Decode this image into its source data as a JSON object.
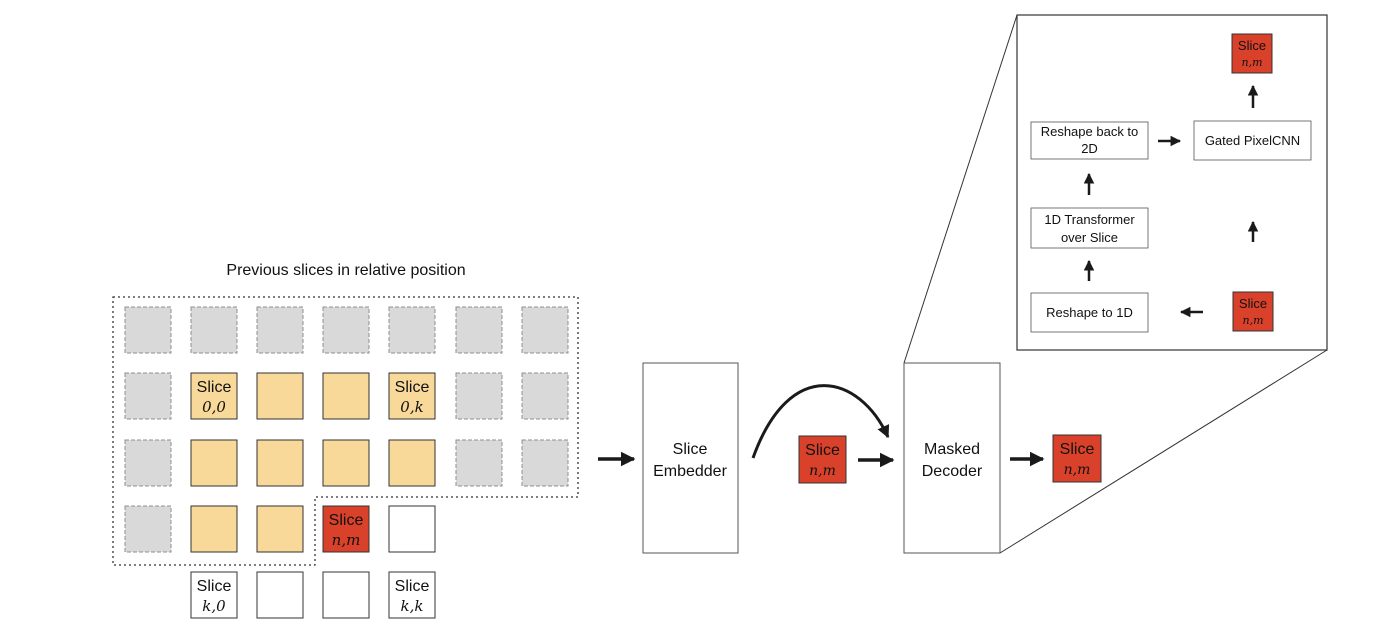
{
  "header": {
    "title": "Previous slices in relative position"
  },
  "colors": {
    "context": "#f8d99a",
    "unseen": "#d9d9d9",
    "current": "#d9412b",
    "empty": "#ffffff",
    "stroke": "#333333",
    "arrow": "#1a1a1a"
  },
  "grid": {
    "rows": [
      [
        "gray",
        "gray",
        "gray",
        "gray",
        "gray",
        "gray",
        "gray"
      ],
      [
        "gray",
        "yellow",
        "yellow",
        "yellow",
        "yellow",
        "gray",
        "gray"
      ],
      [
        "gray",
        "yellow",
        "yellow",
        "yellow",
        "yellow",
        "gray",
        "gray"
      ],
      [
        "gray",
        "yellow",
        "yellow",
        "red",
        "white",
        null,
        null
      ],
      [
        null,
        "white",
        "white",
        "white",
        "white",
        null,
        null
      ]
    ],
    "labels": [
      {
        "row": 1,
        "col": 1,
        "title": "Slice",
        "sub": "0,0"
      },
      {
        "row": 1,
        "col": 4,
        "title": "Slice",
        "sub": "0,k"
      },
      {
        "row": 3,
        "col": 3,
        "title": "Slice",
        "sub": "n,m"
      },
      {
        "row": 4,
        "col": 1,
        "title": "Slice",
        "sub": "k,0"
      },
      {
        "row": 4,
        "col": 4,
        "title": "Slice",
        "sub": "k,k"
      }
    ]
  },
  "embedder": {
    "line1": "Slice",
    "line2": "Embedder"
  },
  "slice_token": {
    "title": "Slice",
    "sub": "n,m"
  },
  "decoder": {
    "line1": "Masked",
    "line2": "Decoder"
  },
  "inset": {
    "reshape_back": {
      "line1": "Reshape back to",
      "line2": "2D"
    },
    "gated": {
      "label": "Gated PixelCNN"
    },
    "transformer": {
      "line1": "1D Transformer",
      "line2": "over Slice"
    },
    "reshape_1d": {
      "label": "Reshape to 1D"
    }
  }
}
